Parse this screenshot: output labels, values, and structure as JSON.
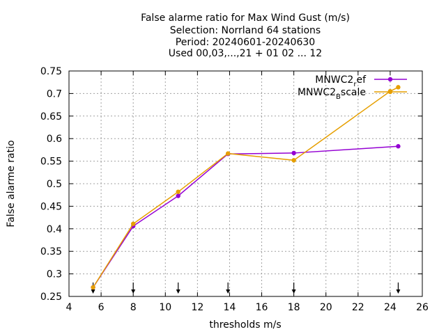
{
  "chart_data": {
    "type": "line",
    "title_lines": [
      "False alarme ratio  for Max Wind Gust (m/s)",
      "Selection: Norrland     64 stations",
      "Period: 20240601-20240630",
      "Used 00,03,...,21 + 01 02 ... 12"
    ],
    "xlabel": "thresholds m/s",
    "ylabel": "False alarme ratio",
    "xlim": [
      4,
      26
    ],
    "ylim": [
      0.25,
      0.75
    ],
    "xticks": [
      4,
      6,
      8,
      10,
      12,
      14,
      16,
      18,
      20,
      22,
      24,
      26
    ],
    "yticks": [
      0.25,
      0.3,
      0.35,
      0.4,
      0.45,
      0.5,
      0.55,
      0.6,
      0.65,
      0.7,
      0.75
    ],
    "ytick_labels": [
      "0.25",
      "0.3",
      "0.35",
      "0.4",
      "0.45",
      "0.5",
      "0.55",
      "0.6",
      "0.65",
      "0.7",
      "0.75"
    ],
    "grid": true,
    "legend_position": "top-right",
    "series": [
      {
        "name_base": "MNWC2",
        "name_sub": "r",
        "name_rest": "ef",
        "color": "#9400d3",
        "x": [
          5.5,
          8,
          10.8,
          13.9,
          18,
          24.5
        ],
        "y": [
          0.27,
          0.406,
          0.473,
          0.566,
          0.568,
          0.583
        ]
      },
      {
        "name_base": "MNWC2",
        "name_sub": "B",
        "name_rest": "scale",
        "color": "#e69f00",
        "x": [
          5.5,
          8,
          10.8,
          13.9,
          18,
          24,
          24.5
        ],
        "y": [
          0.27,
          0.411,
          0.482,
          0.567,
          0.552,
          0.705,
          0.714
        ]
      }
    ],
    "arrows_x": [
      5.5,
      8,
      10.8,
      13.9,
      18,
      24.5
    ]
  }
}
